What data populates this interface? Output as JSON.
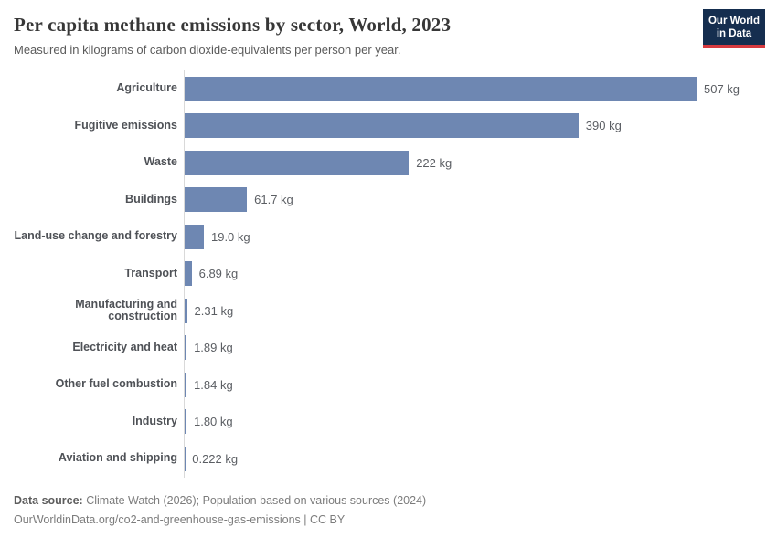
{
  "header": {
    "title": "Per capita methane emissions by sector, World, 2023",
    "subtitle": "Measured in kilograms of carbon dioxide-equivalents per person per year.",
    "logo": {
      "line1": "Our World",
      "line2": "in Data"
    }
  },
  "chart_data": {
    "type": "bar",
    "orientation": "horizontal",
    "title": "Per capita methane emissions by sector, World, 2023",
    "unit": "kg",
    "xlim": [
      0,
      507
    ],
    "grid": false,
    "legend": "none",
    "bar_color": "#6e87b2",
    "axis_line_color": "#d9d9d9",
    "categories": [
      "Agriculture",
      "Fugitive emissions",
      "Waste",
      "Buildings",
      "Land-use change and forestry",
      "Transport",
      "Manufacturing and construction",
      "Electricity and heat",
      "Other fuel combustion",
      "Industry",
      "Aviation and shipping"
    ],
    "values": [
      507,
      390,
      222,
      61.7,
      19.0,
      6.89,
      2.31,
      1.89,
      1.84,
      1.8,
      0.222
    ],
    "value_labels": [
      "507 kg",
      "390 kg",
      "222 kg",
      "61.7 kg",
      "19.0 kg",
      "6.89 kg",
      "2.31 kg",
      "1.89 kg",
      "1.84 kg",
      "1.80 kg",
      "0.222 kg"
    ]
  },
  "footer": {
    "source_label": "Data source:",
    "source_text": " Climate Watch (2026); Population based on various sources (2024)",
    "link_line": "OurWorldinData.org/co2-and-greenhouse-gas-emissions | CC BY"
  }
}
